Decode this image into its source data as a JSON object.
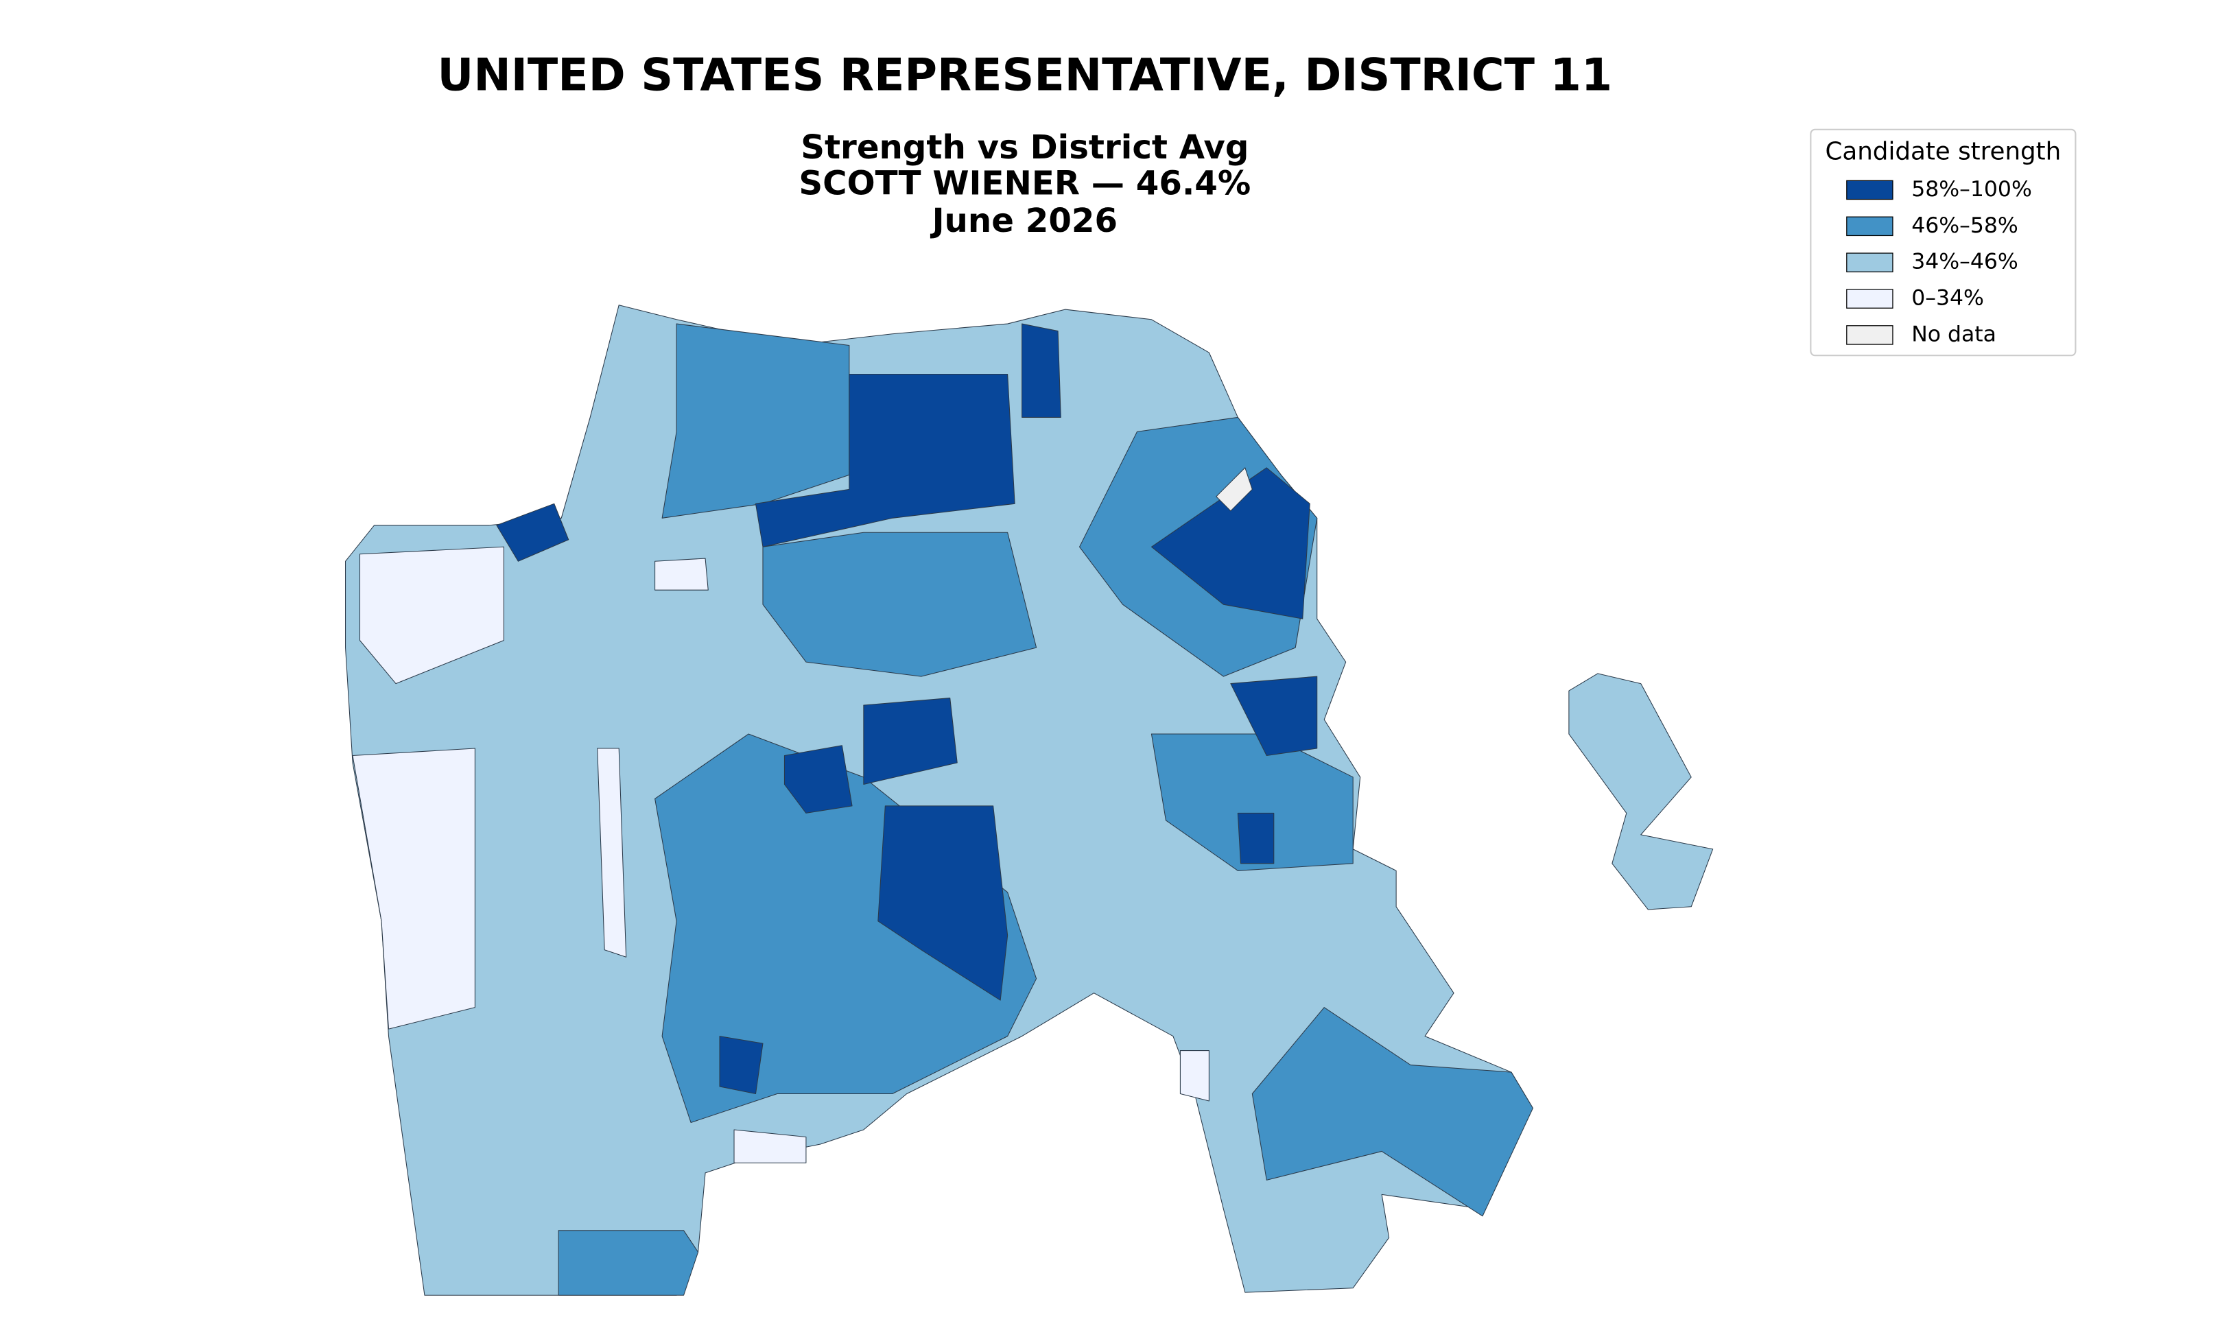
{
  "title": "UNITED STATES REPRESENTATIVE, DISTRICT 11",
  "subtitle": [
    "Strength vs District Avg",
    "SCOTT WIENER — 46.4%",
    "June 2026"
  ],
  "legend": {
    "title": "Candidate strength",
    "entries": [
      {
        "label": "58%–100%",
        "color": "#08479a"
      },
      {
        "label": "46%–58%",
        "color": "#4292c6"
      },
      {
        "label": "34%–46%",
        "color": "#9ecae1"
      },
      {
        "label": "0–34%",
        "color": "#eff3ff"
      },
      {
        "label": "No data",
        "color": "#f0f0f0"
      }
    ]
  }
}
